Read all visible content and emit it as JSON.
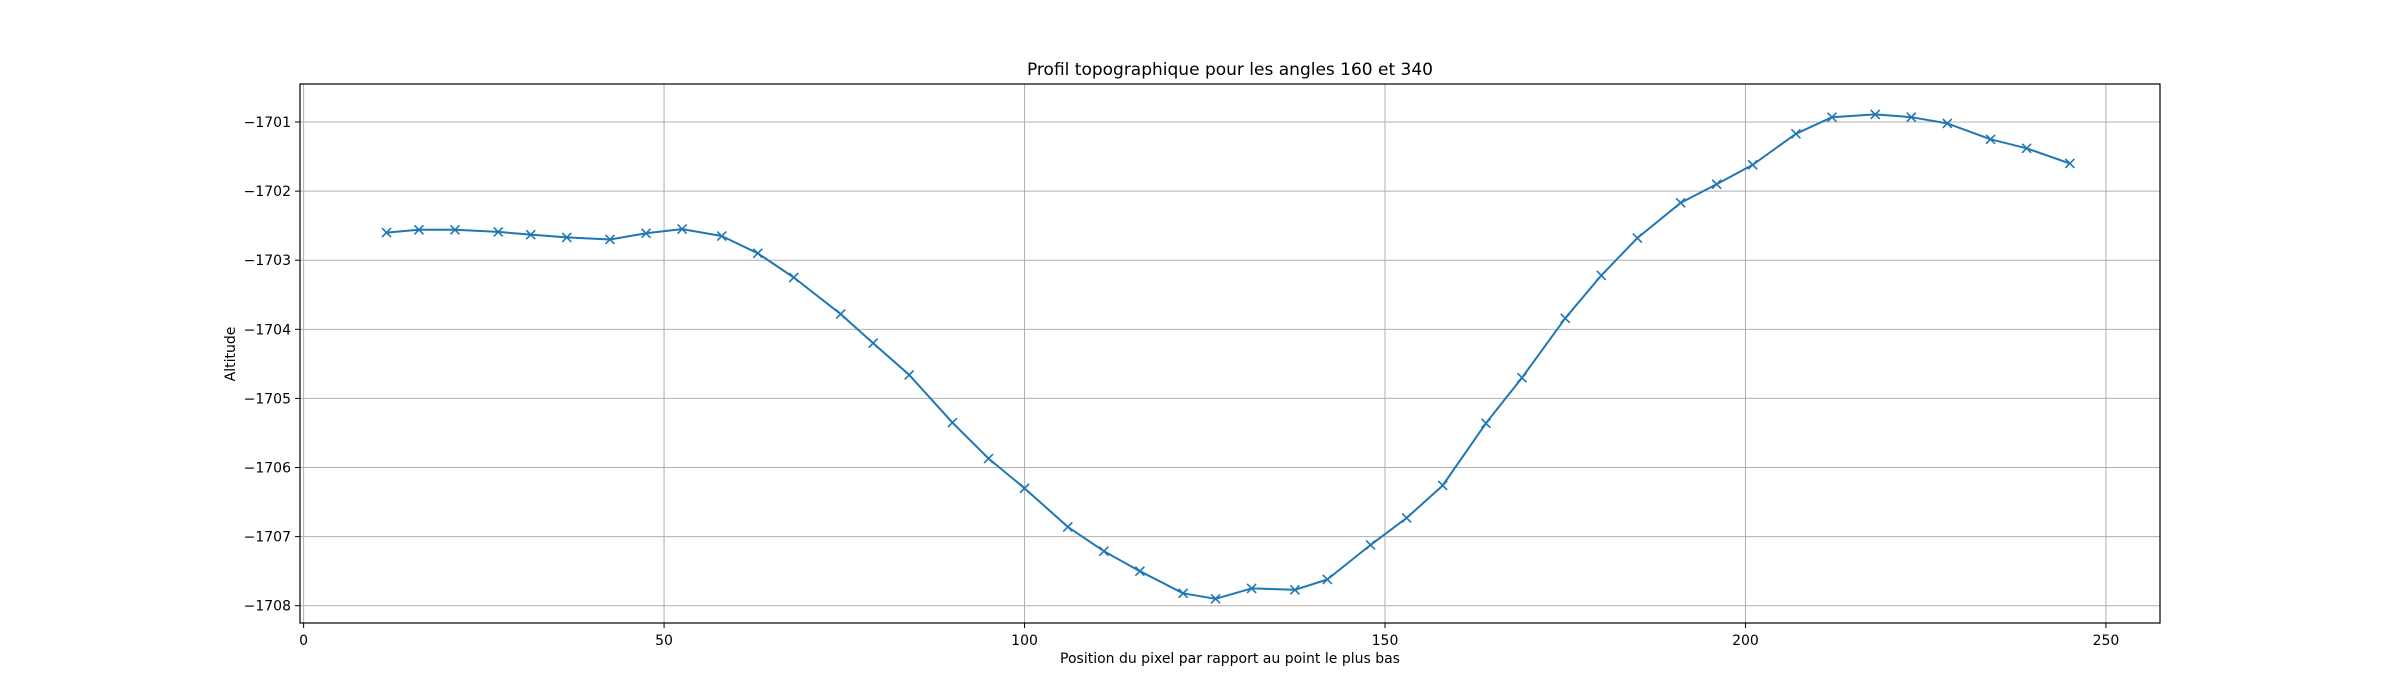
{
  "chart_data": {
    "type": "line",
    "title": "Profil topographique pour les angles 160 et 340",
    "xlabel": "Position du pixel par rapport au point le plus bas",
    "ylabel": "Altitude",
    "xlim": [
      -0.5,
      257.5
    ],
    "ylim": [
      -1708.25,
      -1700.45
    ],
    "grid": true,
    "x_ticks": [
      0,
      50,
      100,
      150,
      200,
      250
    ],
    "x_tick_labels": [
      "0",
      "50",
      "100",
      "150",
      "200",
      "250"
    ],
    "y_ticks": [
      -1701,
      -1702,
      -1703,
      -1704,
      -1705,
      -1706,
      -1707,
      -1708
    ],
    "y_tick_labels": [
      "−1701",
      "−1702",
      "−1703",
      "−1704",
      "−1705",
      "−1706",
      "−1707",
      "−1708"
    ],
    "series": [
      {
        "color": "#1f77b4",
        "marker": "x",
        "x": [
          11.5,
          16,
          21,
          27,
          31.5,
          36.5,
          42.5,
          47.5,
          52.5,
          58,
          63,
          68,
          74.5,
          79,
          84,
          90,
          95,
          100,
          106,
          111,
          116,
          122,
          126.5,
          131.5,
          137.5,
          142,
          148,
          153,
          158,
          164,
          169,
          175,
          180,
          185,
          191,
          196,
          201,
          207,
          212,
          218,
          223,
          228,
          234,
          239,
          245
        ],
        "y": [
          -1702.6,
          -1702.56,
          -1702.56,
          -1702.59,
          -1702.63,
          -1702.67,
          -1702.7,
          -1702.61,
          -1702.55,
          -1702.65,
          -1702.9,
          -1703.25,
          -1703.78,
          -1704.2,
          -1704.66,
          -1705.35,
          -1705.87,
          -1706.3,
          -1706.86,
          -1707.21,
          -1707.5,
          -1707.82,
          -1707.9,
          -1707.75,
          -1707.77,
          -1707.62,
          -1707.12,
          -1706.73,
          -1706.26,
          -1705.36,
          -1704.7,
          -1703.84,
          -1703.22,
          -1702.68,
          -1702.17,
          -1701.9,
          -1701.62,
          -1701.17,
          -1700.93,
          -1700.89,
          -1700.93,
          -1701.02,
          -1701.25,
          -1701.38,
          -1701.6
        ]
      }
    ]
  }
}
